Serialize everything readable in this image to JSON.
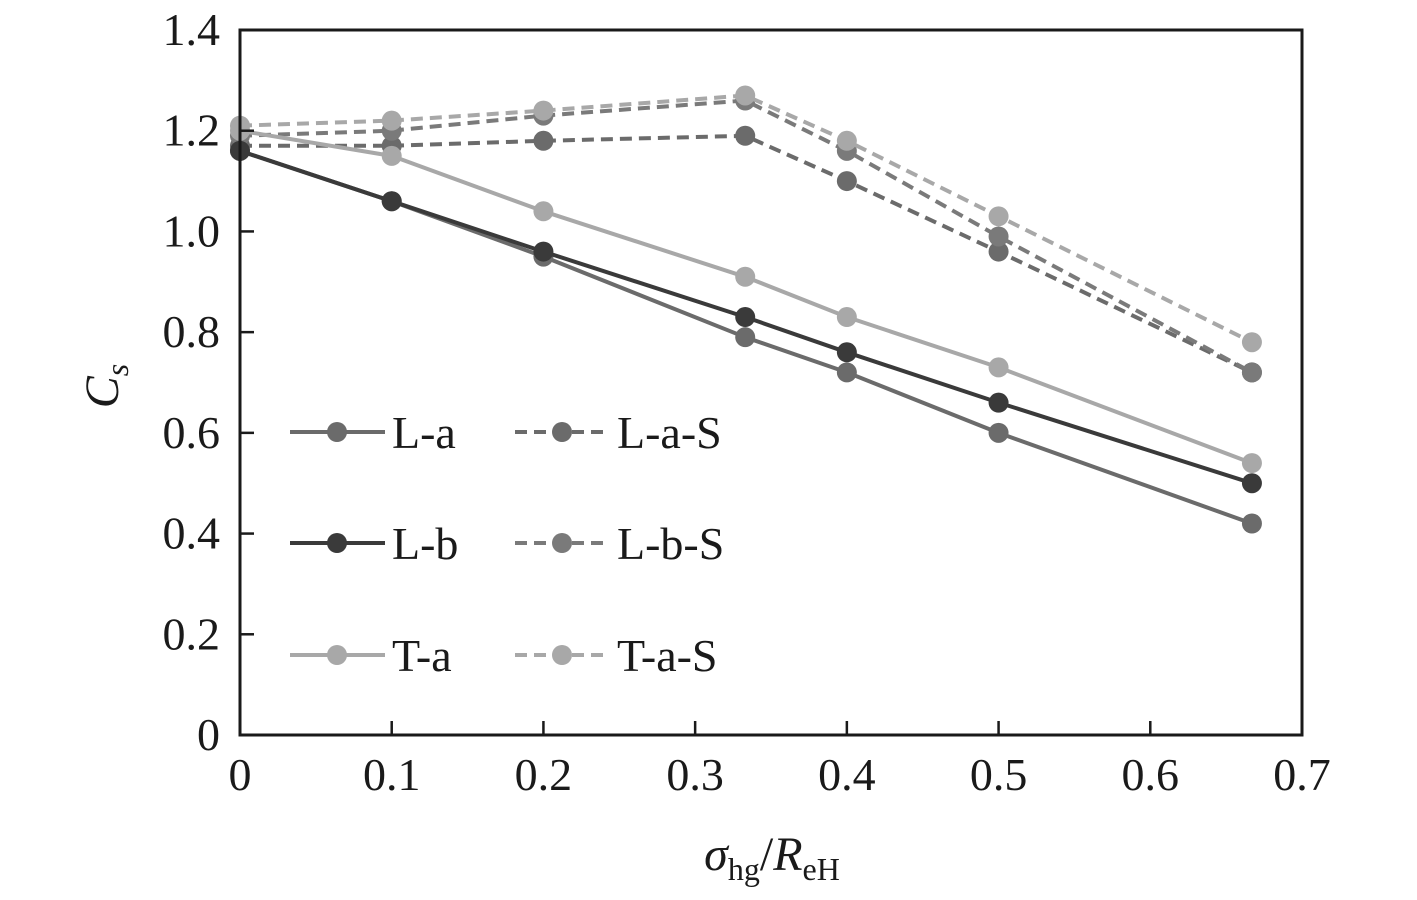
{
  "chart_data": {
    "type": "line",
    "title": "",
    "xlabel": {
      "main": "σ",
      "main_sub": "hg",
      "slash": "/",
      "den": "R",
      "den_sub": "eH"
    },
    "ylabel": {
      "main": "C",
      "sub": "s"
    },
    "xlim": [
      0,
      0.7
    ],
    "ylim": [
      0,
      1.4
    ],
    "xticks": [
      {
        "value": 0,
        "label": "0"
      },
      {
        "value": 0.1,
        "label": "0.1"
      },
      {
        "value": 0.2,
        "label": "0.2"
      },
      {
        "value": 0.3,
        "label": "0.3"
      },
      {
        "value": 0.4,
        "label": "0.4"
      },
      {
        "value": 0.5,
        "label": "0.5"
      },
      {
        "value": 0.6,
        "label": "0.6"
      },
      {
        "value": 0.7,
        "label": "0.7"
      }
    ],
    "yticks": [
      {
        "value": 0,
        "label": "0"
      },
      {
        "value": 0.2,
        "label": "0.2"
      },
      {
        "value": 0.4,
        "label": "0.4"
      },
      {
        "value": 0.6,
        "label": "0.6"
      },
      {
        "value": 0.8,
        "label": "0.8"
      },
      {
        "value": 1.0,
        "label": "1.0"
      },
      {
        "value": 1.2,
        "label": "1.2"
      },
      {
        "value": 1.4,
        "label": "1.4"
      }
    ],
    "grid": false,
    "legend_position": "left-center",
    "x": [
      0,
      0.1,
      0.2,
      0.333,
      0.4,
      0.5,
      0.667
    ],
    "series": [
      {
        "name": "L-a",
        "values": [
          1.16,
          1.06,
          0.95,
          0.79,
          0.72,
          0.6,
          0.42
        ],
        "color": "#6b6b6b",
        "dashed": false
      },
      {
        "name": "L-b",
        "values": [
          1.16,
          1.06,
          0.96,
          0.83,
          0.76,
          0.66,
          0.5
        ],
        "color": "#3a3a3a",
        "dashed": false
      },
      {
        "name": "T-a",
        "values": [
          1.2,
          1.15,
          1.04,
          0.91,
          0.83,
          0.73,
          0.54
        ],
        "color": "#a8a8a8",
        "dashed": false
      },
      {
        "name": "L-a-S",
        "values": [
          1.17,
          1.17,
          1.18,
          1.19,
          1.1,
          0.96,
          0.72
        ],
        "color": "#6b6b6b",
        "dashed": true
      },
      {
        "name": "L-b-S",
        "values": [
          1.19,
          1.2,
          1.23,
          1.26,
          1.16,
          0.99,
          0.72
        ],
        "color": "#7a7a7a",
        "dashed": true
      },
      {
        "name": "T-a-S",
        "values": [
          1.21,
          1.22,
          1.24,
          1.27,
          1.18,
          1.03,
          0.78
        ],
        "color": "#a8a8a8",
        "dashed": true
      }
    ]
  }
}
